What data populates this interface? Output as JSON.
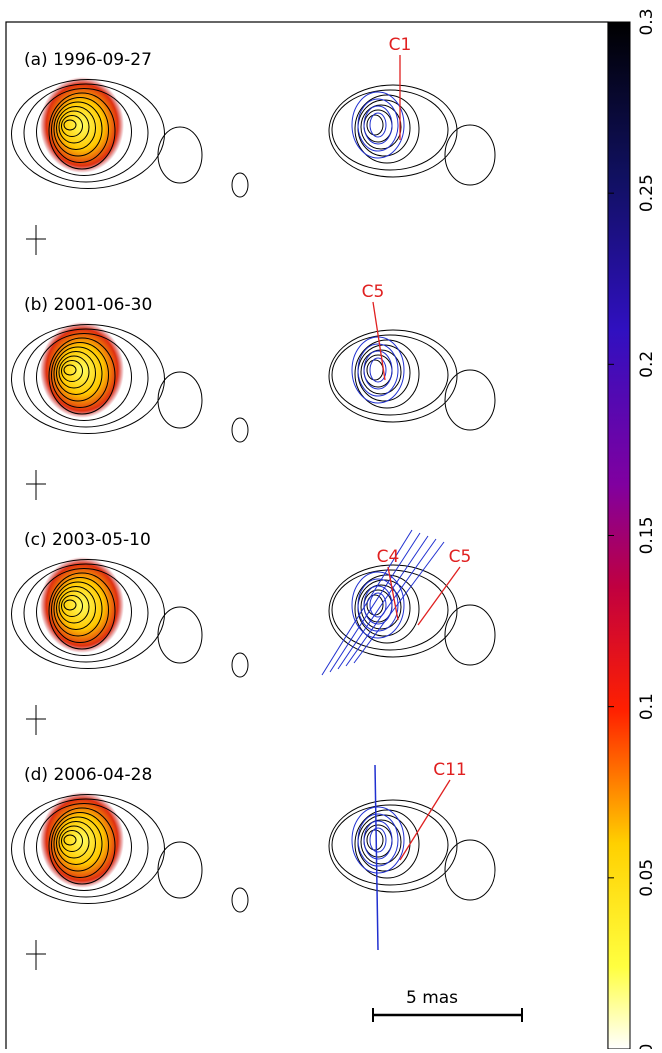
{
  "panels": [
    {
      "label": "(a) 1996-09-27",
      "components": [
        "C1"
      ]
    },
    {
      "label": "(b) 2001-06-30",
      "components": [
        "C5"
      ]
    },
    {
      "label": "(c) 2003-05-10",
      "components": [
        "C4",
        "C5"
      ]
    },
    {
      "label": "(d) 2006-04-28",
      "components": [
        "C11"
      ]
    }
  ],
  "colorbar": {
    "ticks": [
      0,
      0.05,
      0.1,
      0.15,
      0.2,
      0.25,
      0.3
    ]
  },
  "scale_bar": "5 mas"
}
